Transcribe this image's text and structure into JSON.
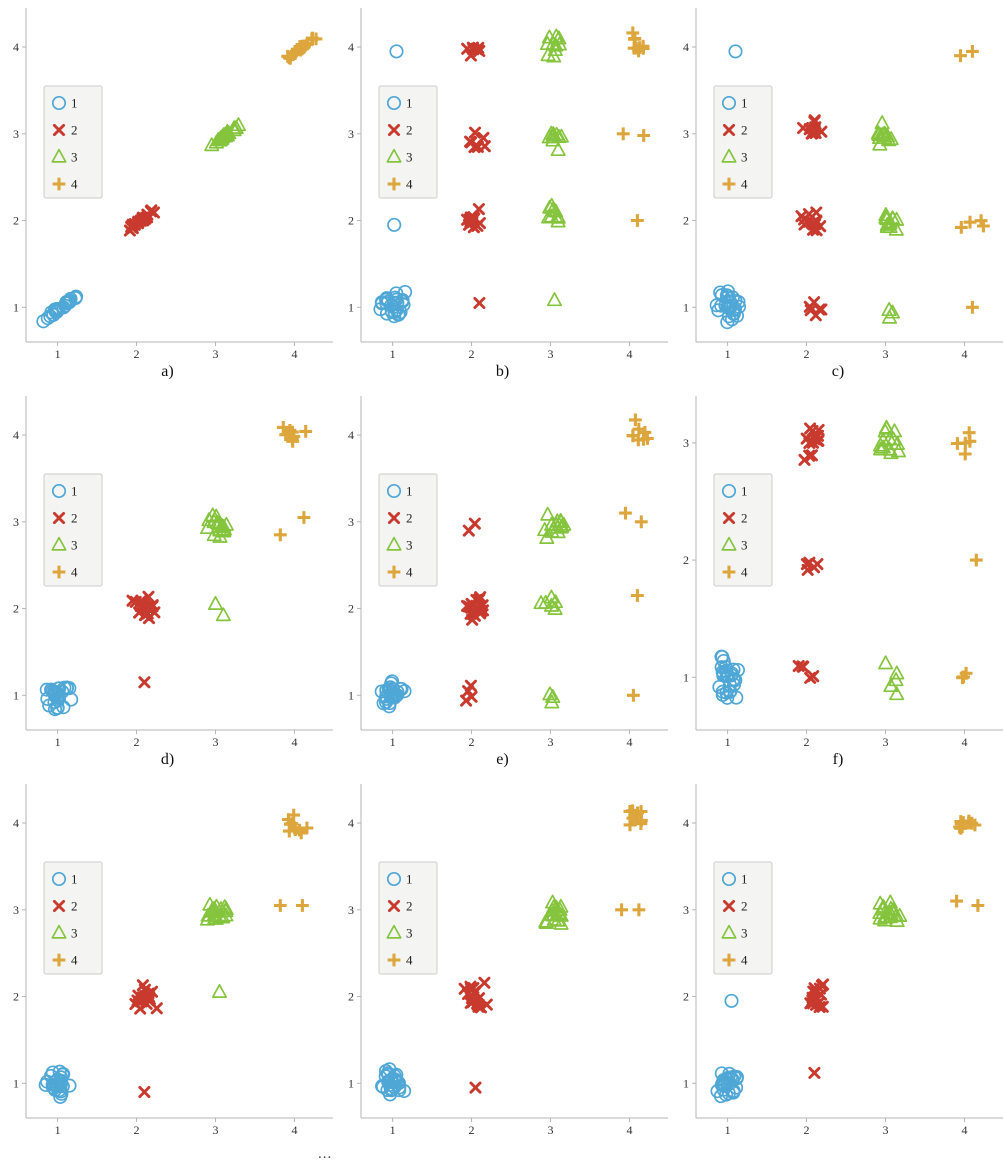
{
  "figure": {
    "background": "#ffffff",
    "axis_color": "#b5b5b5",
    "tick_label_color": "#333333",
    "legend": {
      "bg": "#f4f4f2",
      "border": "#cccccc",
      "entries": [
        "1",
        "2",
        "3",
        "4"
      ]
    },
    "classes": [
      {
        "label": "1",
        "marker": "circle",
        "color": "#4fa7d6"
      },
      {
        "label": "2",
        "marker": "x",
        "color": "#c8392e"
      },
      {
        "label": "3",
        "marker": "triangle",
        "color": "#85c43d"
      },
      {
        "label": "4",
        "marker": "plus",
        "color": "#dda63d"
      }
    ]
  },
  "footer": {
    "more": "..."
  },
  "chart_data": [
    {
      "type": "scatter",
      "caption": "a)",
      "xlim": [
        0.6,
        4.45
      ],
      "ylim": [
        0.6,
        4.45
      ],
      "x_ticks": [
        1,
        2,
        3,
        4
      ],
      "y_ticks": [
        1,
        2,
        3,
        4
      ],
      "series": [
        {
          "name": "1",
          "clusters": [
            {
              "x": 1.02,
              "y": 0.98,
              "n": 26,
              "sx": 0.14,
              "sy": 0.03,
              "corr": 0.7
            }
          ]
        },
        {
          "name": "2",
          "clusters": [
            {
              "x": 2.05,
              "y": 2.0,
              "n": 26,
              "sx": 0.13,
              "sy": 0.03,
              "corr": 0.7
            }
          ]
        },
        {
          "name": "3",
          "clusters": [
            {
              "x": 3.08,
              "y": 2.95,
              "n": 26,
              "sx": 0.13,
              "sy": 0.03,
              "corr": 0.7
            }
          ]
        },
        {
          "name": "4",
          "clusters": [
            {
              "x": 4.1,
              "y": 4.0,
              "n": 22,
              "sx": 0.13,
              "sy": 0.03,
              "corr": 0.7
            }
          ]
        }
      ]
    },
    {
      "type": "scatter",
      "caption": "b)",
      "xlim": [
        0.6,
        4.45
      ],
      "ylim": [
        0.6,
        4.45
      ],
      "x_ticks": [
        1,
        2,
        3,
        4
      ],
      "y_ticks": [
        1,
        2,
        3,
        4
      ],
      "series": [
        {
          "name": "1",
          "clusters": [
            {
              "x": 1.0,
              "y": 1.02,
              "n": 26,
              "sx": 0.1,
              "sy": 0.1
            },
            {
              "x": 1.05,
              "y": 3.95,
              "n": 1
            },
            {
              "x": 1.02,
              "y": 1.95,
              "n": 1
            }
          ]
        },
        {
          "name": "2",
          "clusters": [
            {
              "x": 2.02,
              "y": 3.98,
              "n": 7,
              "sx": 0.07,
              "sy": 0.06
            },
            {
              "x": 2.07,
              "y": 2.9,
              "n": 8,
              "sx": 0.08,
              "sy": 0.08
            },
            {
              "x": 2.05,
              "y": 2.0,
              "n": 12,
              "sx": 0.09,
              "sy": 0.09
            },
            {
              "x": 2.1,
              "y": 1.05,
              "n": 1
            }
          ]
        },
        {
          "name": "3",
          "clusters": [
            {
              "x": 3.02,
              "y": 4.0,
              "n": 10,
              "sx": 0.11,
              "sy": 0.1
            },
            {
              "x": 3.07,
              "y": 2.95,
              "n": 10,
              "sx": 0.09,
              "sy": 0.09
            },
            {
              "x": 3.05,
              "y": 2.1,
              "n": 9,
              "sx": 0.09,
              "sy": 0.09
            },
            {
              "x": 3.05,
              "y": 1.08,
              "n": 1
            }
          ]
        },
        {
          "name": "4",
          "clusters": [
            {
              "x": 4.08,
              "y": 4.05,
              "n": 9,
              "sx": 0.09,
              "sy": 0.08
            },
            {
              "x": 3.92,
              "y": 3.0,
              "n": 1
            },
            {
              "x": 4.18,
              "y": 2.98,
              "n": 1
            },
            {
              "x": 4.1,
              "y": 2.0,
              "n": 1
            }
          ]
        }
      ]
    },
    {
      "type": "scatter",
      "caption": "c)",
      "xlim": [
        0.6,
        4.45
      ],
      "ylim": [
        0.6,
        4.45
      ],
      "x_ticks": [
        1,
        2,
        3,
        4
      ],
      "y_ticks": [
        1,
        2,
        3,
        4
      ],
      "series": [
        {
          "name": "1",
          "clusters": [
            {
              "x": 1.0,
              "y": 1.0,
              "n": 28,
              "sx": 0.1,
              "sy": 0.11
            },
            {
              "x": 1.1,
              "y": 3.95,
              "n": 1
            }
          ]
        },
        {
          "name": "2",
          "clusters": [
            {
              "x": 2.1,
              "y": 3.05,
              "n": 12,
              "sx": 0.1,
              "sy": 0.08
            },
            {
              "x": 2.05,
              "y": 2.0,
              "n": 12,
              "sx": 0.09,
              "sy": 0.09
            },
            {
              "x": 2.08,
              "y": 1.0,
              "n": 6,
              "sx": 0.12,
              "sy": 0.08
            }
          ]
        },
        {
          "name": "3",
          "clusters": [
            {
              "x": 3.0,
              "y": 3.0,
              "n": 12,
              "sx": 0.1,
              "sy": 0.09
            },
            {
              "x": 3.05,
              "y": 2.0,
              "n": 12,
              "sx": 0.09,
              "sy": 0.09
            },
            {
              "x": 3.05,
              "y": 0.92,
              "n": 3,
              "sx": 0.06,
              "sy": 0.07
            }
          ]
        },
        {
          "name": "4",
          "clusters": [
            {
              "x": 3.95,
              "y": 3.9,
              "n": 1
            },
            {
              "x": 4.1,
              "y": 3.95,
              "n": 1
            },
            {
              "x": 4.05,
              "y": 1.95,
              "n": 4,
              "sx": 0.15,
              "sy": 0.07
            },
            {
              "x": 4.1,
              "y": 1.0,
              "n": 1
            }
          ]
        }
      ]
    },
    {
      "type": "scatter",
      "caption": "d)",
      "xlim": [
        0.6,
        4.45
      ],
      "ylim": [
        0.6,
        4.45
      ],
      "x_ticks": [
        1,
        2,
        3,
        4
      ],
      "y_ticks": [
        1,
        2,
        3,
        4
      ],
      "series": [
        {
          "name": "1",
          "clusters": [
            {
              "x": 1.0,
              "y": 1.0,
              "n": 28,
              "sx": 0.11,
              "sy": 0.12
            }
          ]
        },
        {
          "name": "2",
          "clusters": [
            {
              "x": 2.1,
              "y": 2.0,
              "n": 18,
              "sx": 0.1,
              "sy": 0.09
            },
            {
              "x": 2.1,
              "y": 1.15,
              "n": 1
            }
          ]
        },
        {
          "name": "3",
          "clusters": [
            {
              "x": 3.05,
              "y": 2.95,
              "n": 18,
              "sx": 0.12,
              "sy": 0.09
            },
            {
              "x": 3.0,
              "y": 2.05,
              "n": 1
            },
            {
              "x": 3.1,
              "y": 1.92,
              "n": 1
            }
          ]
        },
        {
          "name": "4",
          "clusters": [
            {
              "x": 4.0,
              "y": 4.0,
              "n": 8,
              "sx": 0.12,
              "sy": 0.12
            },
            {
              "x": 3.82,
              "y": 2.85,
              "n": 1
            },
            {
              "x": 4.12,
              "y": 3.05,
              "n": 1
            }
          ]
        }
      ]
    },
    {
      "type": "scatter",
      "caption": "e)",
      "xlim": [
        0.6,
        4.45
      ],
      "ylim": [
        0.6,
        4.45
      ],
      "x_ticks": [
        1,
        2,
        3,
        4
      ],
      "y_ticks": [
        1,
        2,
        3,
        4
      ],
      "series": [
        {
          "name": "1",
          "clusters": [
            {
              "x": 1.0,
              "y": 1.0,
              "n": 28,
              "sx": 0.1,
              "sy": 0.11
            }
          ]
        },
        {
          "name": "2",
          "clusters": [
            {
              "x": 2.05,
              "y": 2.0,
              "n": 18,
              "sx": 0.1,
              "sy": 0.1
            },
            {
              "x": 2.0,
              "y": 2.95,
              "n": 2,
              "sx": 0.05,
              "sy": 0.04
            },
            {
              "x": 2.0,
              "y": 0.98,
              "n": 4,
              "sx": 0.09,
              "sy": 0.09
            }
          ]
        },
        {
          "name": "3",
          "clusters": [
            {
              "x": 3.05,
              "y": 2.95,
              "n": 14,
              "sx": 0.1,
              "sy": 0.1
            },
            {
              "x": 3.0,
              "y": 2.05,
              "n": 6,
              "sx": 0.08,
              "sy": 0.09
            },
            {
              "x": 3.05,
              "y": 1.0,
              "n": 3,
              "sx": 0.05,
              "sy": 0.08
            }
          ]
        },
        {
          "name": "4",
          "clusters": [
            {
              "x": 4.1,
              "y": 4.05,
              "n": 8,
              "sx": 0.09,
              "sy": 0.09
            },
            {
              "x": 3.95,
              "y": 3.1,
              "n": 1
            },
            {
              "x": 4.15,
              "y": 3.0,
              "n": 1
            },
            {
              "x": 4.1,
              "y": 2.15,
              "n": 1
            },
            {
              "x": 4.05,
              "y": 1.0,
              "n": 1
            }
          ]
        }
      ]
    },
    {
      "type": "scatter",
      "caption": "f)",
      "xlim": [
        0.6,
        4.45
      ],
      "ylim": [
        0.55,
        3.4
      ],
      "x_ticks": [
        1,
        2,
        3,
        4
      ],
      "y_ticks": [
        1,
        2,
        3
      ],
      "series": [
        {
          "name": "1",
          "clusters": [
            {
              "x": 1.0,
              "y": 1.0,
              "n": 28,
              "sx": 0.1,
              "sy": 0.12
            }
          ]
        },
        {
          "name": "2",
          "clusters": [
            {
              "x": 2.08,
              "y": 3.02,
              "n": 12,
              "sx": 0.1,
              "sy": 0.08
            },
            {
              "x": 1.97,
              "y": 2.87,
              "n": 2,
              "sx": 0.05,
              "sy": 0.03
            },
            {
              "x": 2.08,
              "y": 2.0,
              "n": 5,
              "sx": 0.08,
              "sy": 0.08
            },
            {
              "x": 2.0,
              "y": 1.0,
              "n": 5,
              "sx": 0.1,
              "sy": 0.08
            }
          ]
        },
        {
          "name": "3",
          "clusters": [
            {
              "x": 3.05,
              "y": 3.0,
              "n": 14,
              "sx": 0.11,
              "sy": 0.09
            },
            {
              "x": 3.05,
              "y": 0.98,
              "n": 5,
              "sx": 0.08,
              "sy": 0.1
            }
          ]
        },
        {
          "name": "4",
          "clusters": [
            {
              "x": 3.98,
              "y": 3.0,
              "n": 5,
              "sx": 0.1,
              "sy": 0.1
            },
            {
              "x": 4.15,
              "y": 2.0,
              "n": 1
            },
            {
              "x": 4.05,
              "y": 1.05,
              "n": 3,
              "sx": 0.11,
              "sy": 0.07
            }
          ]
        }
      ]
    },
    {
      "type": "scatter",
      "caption": "",
      "xlim": [
        0.6,
        4.45
      ],
      "ylim": [
        0.6,
        4.45
      ],
      "x_ticks": [
        1,
        2,
        3,
        4
      ],
      "y_ticks": [
        1,
        2,
        3,
        4
      ],
      "series": [
        {
          "name": "1",
          "clusters": [
            {
              "x": 1.0,
              "y": 1.0,
              "n": 28,
              "sx": 0.11,
              "sy": 0.12
            }
          ]
        },
        {
          "name": "2",
          "clusters": [
            {
              "x": 2.1,
              "y": 2.0,
              "n": 18,
              "sx": 0.1,
              "sy": 0.1
            },
            {
              "x": 2.1,
              "y": 0.9,
              "n": 1
            }
          ]
        },
        {
          "name": "3",
          "clusters": [
            {
              "x": 3.05,
              "y": 2.95,
              "n": 20,
              "sx": 0.11,
              "sy": 0.08
            },
            {
              "x": 3.05,
              "y": 2.05,
              "n": 1
            }
          ]
        },
        {
          "name": "4",
          "clusters": [
            {
              "x": 4.0,
              "y": 4.0,
              "n": 10,
              "sx": 0.1,
              "sy": 0.12
            },
            {
              "x": 3.82,
              "y": 3.05,
              "n": 1
            },
            {
              "x": 4.1,
              "y": 3.05,
              "n": 1
            }
          ]
        }
      ]
    },
    {
      "type": "scatter",
      "caption": "",
      "xlim": [
        0.6,
        4.45
      ],
      "ylim": [
        0.6,
        4.45
      ],
      "x_ticks": [
        1,
        2,
        3,
        4
      ],
      "y_ticks": [
        1,
        2,
        3,
        4
      ],
      "series": [
        {
          "name": "1",
          "clusters": [
            {
              "x": 1.0,
              "y": 1.0,
              "n": 28,
              "sx": 0.1,
              "sy": 0.11
            }
          ]
        },
        {
          "name": "2",
          "clusters": [
            {
              "x": 2.05,
              "y": 2.0,
              "n": 18,
              "sx": 0.1,
              "sy": 0.1
            },
            {
              "x": 2.05,
              "y": 0.95,
              "n": 1
            }
          ]
        },
        {
          "name": "3",
          "clusters": [
            {
              "x": 3.05,
              "y": 2.95,
              "n": 18,
              "sx": 0.1,
              "sy": 0.09
            }
          ]
        },
        {
          "name": "4",
          "clusters": [
            {
              "x": 4.05,
              "y": 4.05,
              "n": 10,
              "sx": 0.08,
              "sy": 0.09
            },
            {
              "x": 3.9,
              "y": 3.0,
              "n": 1
            },
            {
              "x": 4.12,
              "y": 3.0,
              "n": 1
            }
          ]
        }
      ]
    },
    {
      "type": "scatter",
      "caption": "",
      "xlim": [
        0.6,
        4.45
      ],
      "ylim": [
        0.6,
        4.45
      ],
      "x_ticks": [
        1,
        2,
        3,
        4
      ],
      "y_ticks": [
        1,
        2,
        3,
        4
      ],
      "series": [
        {
          "name": "1",
          "clusters": [
            {
              "x": 1.0,
              "y": 1.0,
              "n": 26,
              "sx": 0.1,
              "sy": 0.11
            },
            {
              "x": 1.05,
              "y": 1.95,
              "n": 1
            }
          ]
        },
        {
          "name": "2",
          "clusters": [
            {
              "x": 2.1,
              "y": 2.0,
              "n": 18,
              "sx": 0.1,
              "sy": 0.1
            },
            {
              "x": 2.1,
              "y": 1.12,
              "n": 1
            }
          ]
        },
        {
          "name": "3",
          "clusters": [
            {
              "x": 3.05,
              "y": 2.95,
              "n": 18,
              "sx": 0.1,
              "sy": 0.09
            }
          ]
        },
        {
          "name": "4",
          "clusters": [
            {
              "x": 4.05,
              "y": 4.0,
              "n": 10,
              "sx": 0.09,
              "sy": 0.1
            },
            {
              "x": 3.9,
              "y": 3.1,
              "n": 1
            },
            {
              "x": 4.17,
              "y": 3.05,
              "n": 1
            }
          ]
        }
      ]
    }
  ]
}
